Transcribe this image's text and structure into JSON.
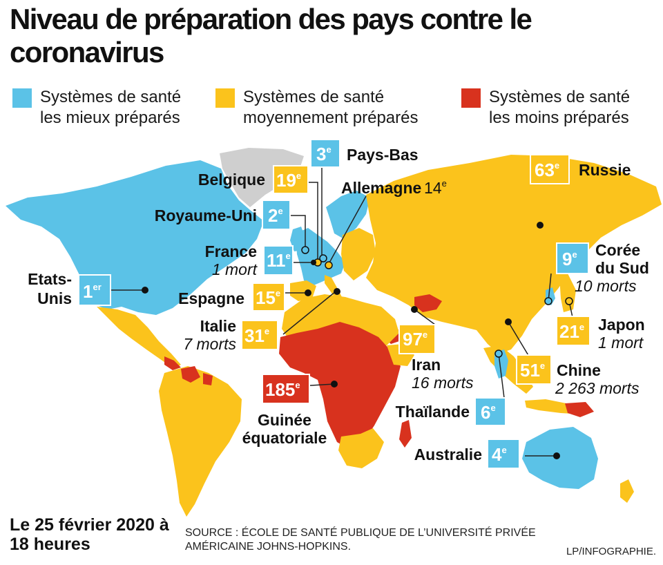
{
  "title": "Niveau de préparation des pays contre le coronavirus",
  "legend": [
    {
      "label": "Systèmes de santé\nles mieux préparés",
      "color": "#5bc2e7"
    },
    {
      "label": "Systèmes de santé\nmoyennement préparés",
      "color": "#fbc31c"
    },
    {
      "label": "Systèmes de santé\nles moins préparés",
      "color": "#d8321e"
    }
  ],
  "colors": {
    "best": "#5bc2e7",
    "medium": "#fbc31c",
    "worst": "#d8321e",
    "no_data": "#cfcfcf"
  },
  "countries": [
    {
      "name": "Etats-Unis",
      "rank": "1",
      "suffix": "er",
      "category": "best"
    },
    {
      "name": "Royaume-Uni",
      "rank": "2",
      "suffix": "e",
      "category": "best"
    },
    {
      "name": "Pays-Bas",
      "rank": "3",
      "suffix": "e",
      "category": "best"
    },
    {
      "name": "Australie",
      "rank": "4",
      "suffix": "e",
      "category": "best"
    },
    {
      "name": "Thaïlande",
      "rank": "6",
      "suffix": "e",
      "category": "best"
    },
    {
      "name": "Corée du Sud",
      "rank": "9",
      "suffix": "e",
      "category": "best",
      "deaths": "10 morts"
    },
    {
      "name": "France",
      "rank": "11",
      "suffix": "e",
      "category": "best",
      "deaths": "1 mort"
    },
    {
      "name": "Allemagne",
      "rank": "14",
      "suffix": "e",
      "category": "best"
    },
    {
      "name": "Espagne",
      "rank": "15",
      "suffix": "e",
      "category": "medium"
    },
    {
      "name": "Belgique",
      "rank": "19",
      "suffix": "e",
      "category": "medium"
    },
    {
      "name": "Japon",
      "rank": "21",
      "suffix": "e",
      "category": "medium",
      "deaths": "1 mort"
    },
    {
      "name": "Italie",
      "rank": "31",
      "suffix": "e",
      "category": "medium",
      "deaths": "7 morts"
    },
    {
      "name": "Chine",
      "rank": "51",
      "suffix": "e",
      "category": "medium",
      "deaths": "2 263 morts"
    },
    {
      "name": "Russie",
      "rank": "63",
      "suffix": "e",
      "category": "medium"
    },
    {
      "name": "Iran",
      "rank": "97",
      "suffix": "e",
      "category": "medium",
      "deaths": "16 morts"
    },
    {
      "name": "Guinée équatoriale",
      "rank": "185",
      "suffix": "e",
      "category": "worst"
    }
  ],
  "footer": {
    "date": "Le 25 février 2020 à 18 heures",
    "source": "SOURCE : ÉCOLE DE SANTÉ PUBLIQUE DE L’UNIVERSITÉ PRIVÉE AMÉRICAINE JOHNS-HOPKINS.",
    "credit": "LP/INFOGRAPHIE."
  }
}
